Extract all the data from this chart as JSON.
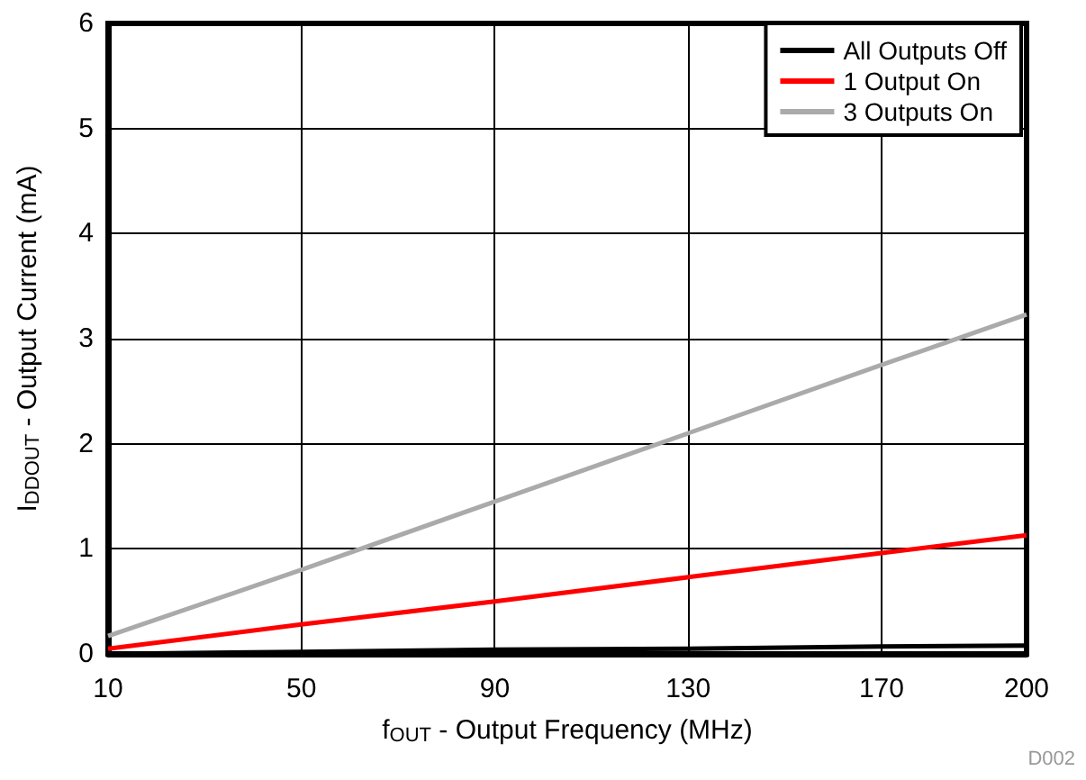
{
  "chart_data": {
    "type": "line",
    "xlabel": "f$_{OUT}$ - Output Frequency (MHz)",
    "ylabel": "I$_{DDOUT}$ - Output Current (mA)",
    "annotations": [
      "D002"
    ],
    "x": [
      10,
      50,
      90,
      130,
      170,
      200
    ],
    "series": [
      {
        "name": "All Outputs Off",
        "color": "#000000",
        "values": [
          0.0,
          0.02,
          0.04,
          0.05,
          0.07,
          0.08
        ]
      },
      {
        "name": "1 Output On",
        "color": "#ff0000",
        "values": [
          0.05,
          0.28,
          0.5,
          0.73,
          0.96,
          1.13
        ]
      },
      {
        "name": "3 Outputs On",
        "color": "#aaaaaa",
        "values": [
          0.17,
          0.8,
          1.45,
          2.1,
          2.75,
          3.23
        ]
      }
    ],
    "xlim": [
      10,
      200
    ],
    "xticks": [
      10,
      50,
      90,
      130,
      170,
      200
    ],
    "ylim": [
      0,
      6
    ],
    "yticks": [
      0,
      1,
      2,
      3,
      4,
      5,
      6
    ],
    "grid": true,
    "legend": "top right",
    "marker": "none",
    "line_style": "solid"
  }
}
